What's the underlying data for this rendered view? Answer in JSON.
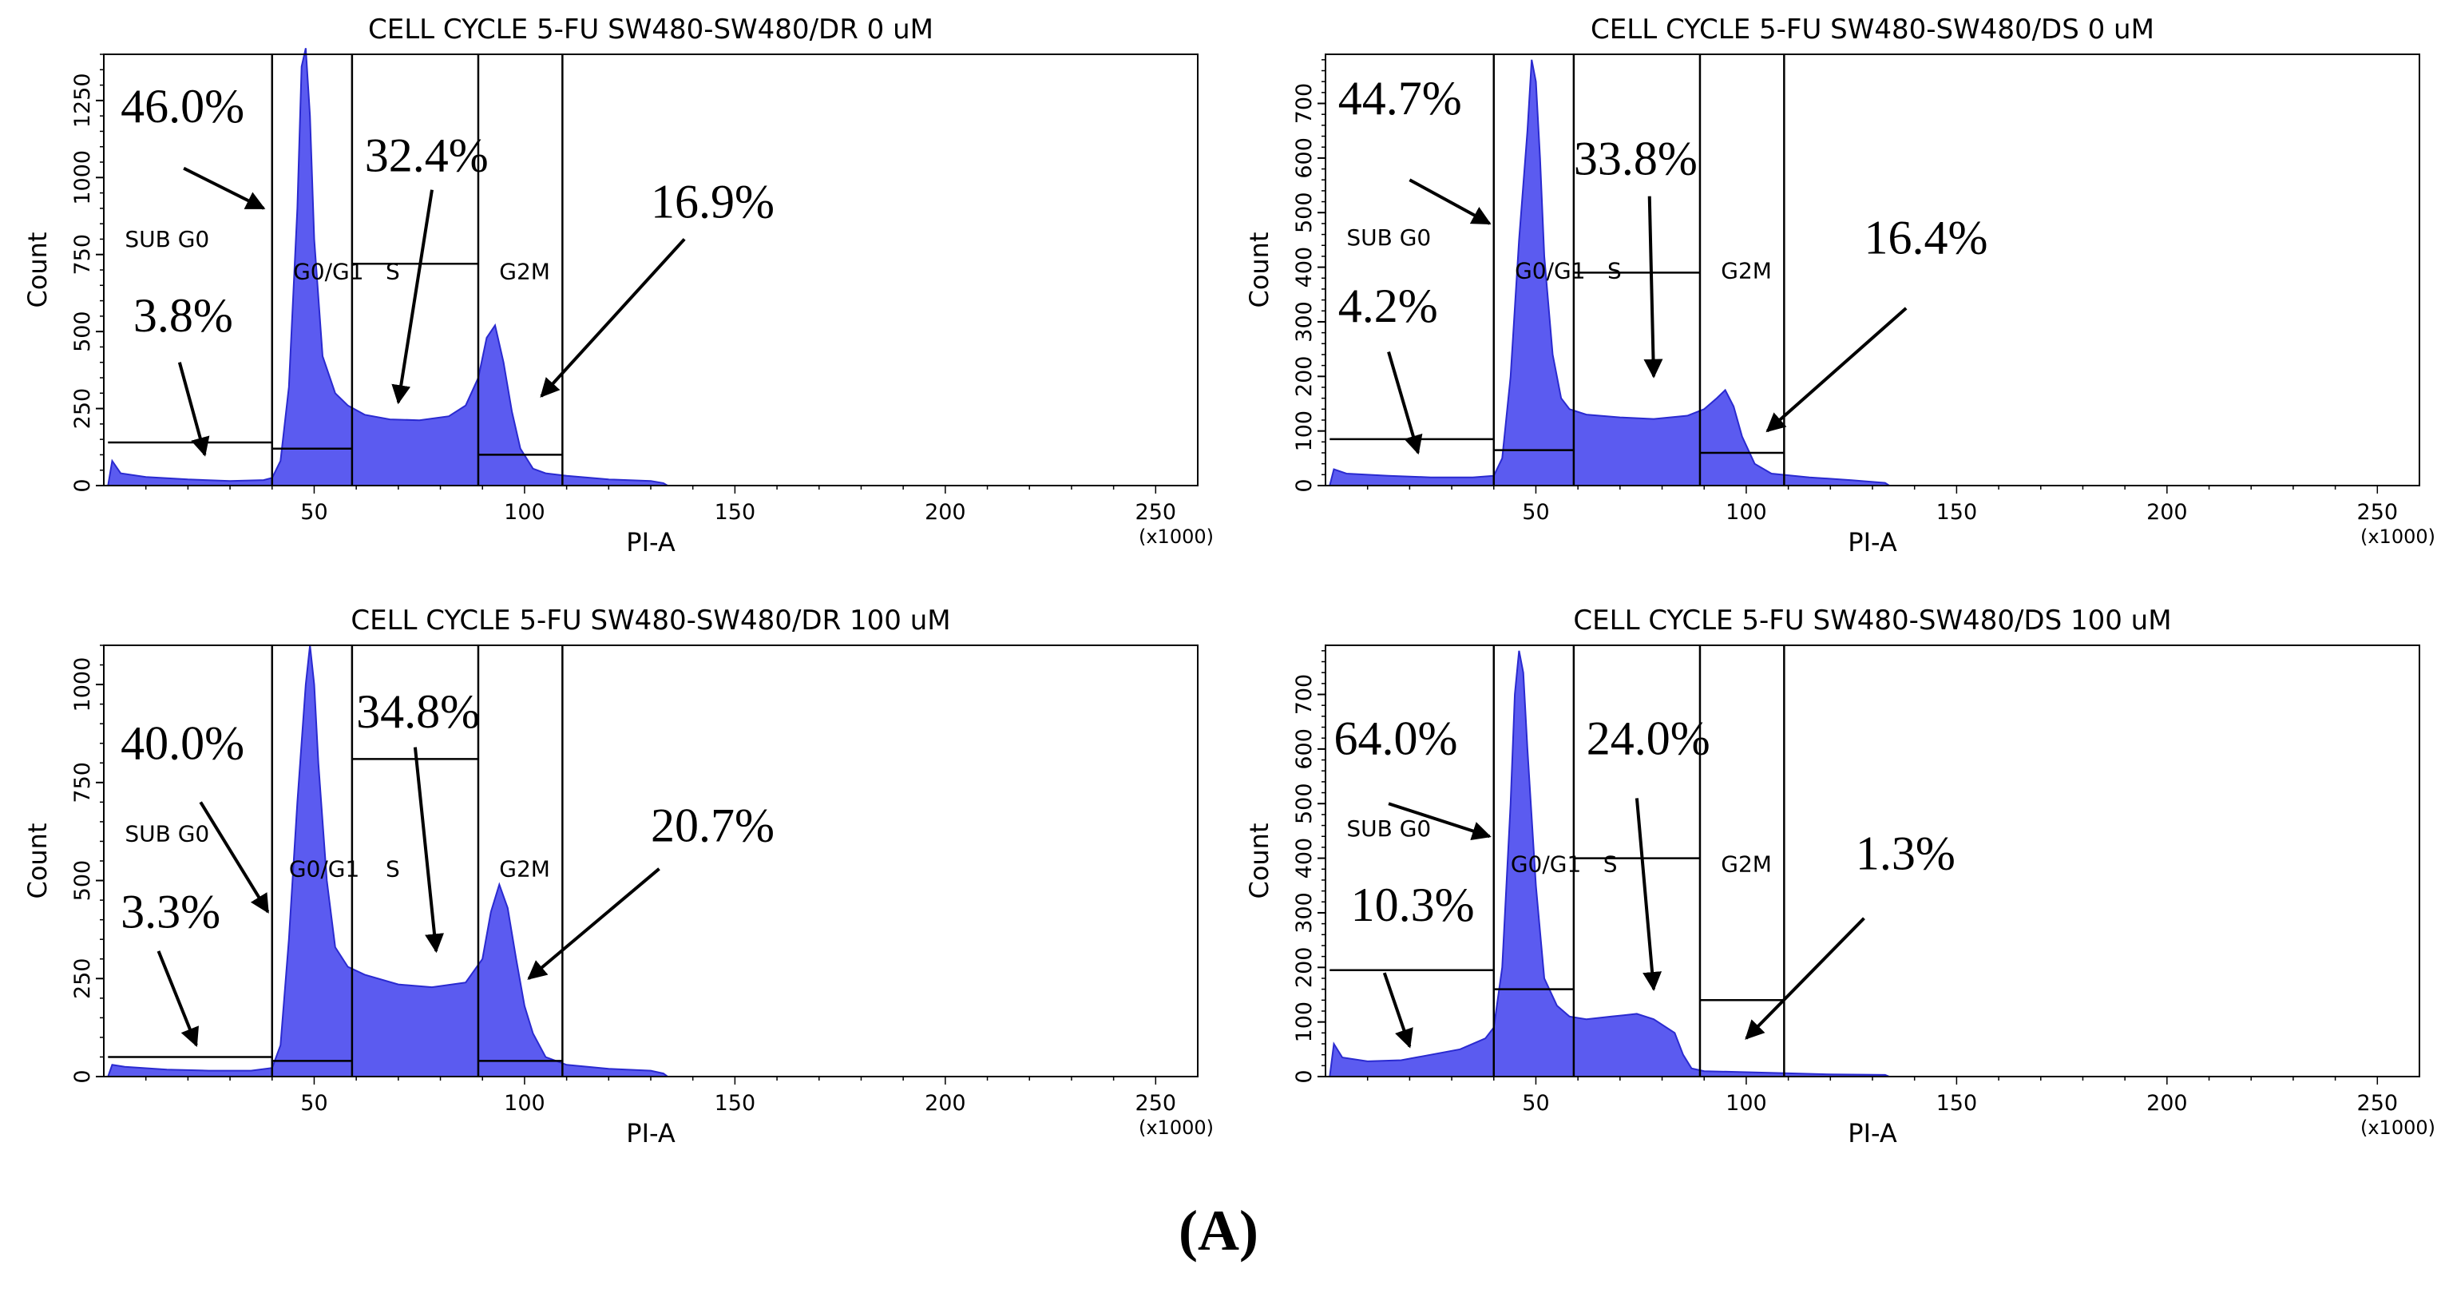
{
  "figure_label": "(A)",
  "colors": {
    "fill": "#5b5bf0",
    "edge": "#2a2ad0",
    "axis": "#000000",
    "arrow": "#000000"
  },
  "chart_data": [
    {
      "type": "area",
      "title": "CELL CYCLE 5-FU SW480-SW480/DR 0 uM",
      "xlabel": "PI-A",
      "ylabel": "Count",
      "x_unit": "(x1000)",
      "xlim": [
        0,
        260
      ],
      "ylim": [
        0,
        1400
      ],
      "xticks": [
        50,
        100,
        150,
        200,
        250
      ],
      "yticks": [
        0,
        250,
        500,
        750,
        1000,
        1250
      ],
      "gate_lines_x": [
        40,
        59,
        89,
        109
      ],
      "gates": [
        {
          "name": "SUB G0",
          "x_range": [
            1,
            40
          ],
          "level": 140
        },
        {
          "name": "G0/G1",
          "x_range": [
            40,
            59
          ],
          "level": 120
        },
        {
          "name": "S",
          "x_range": [
            59,
            89
          ],
          "level": 720
        },
        {
          "name": "G2M",
          "x_range": [
            89,
            109
          ],
          "level": 100
        }
      ],
      "gate_labels": [
        {
          "text": "SUB G0",
          "x": 5,
          "y": 775
        },
        {
          "text": "G0/G1",
          "x": 45,
          "y": 670
        },
        {
          "text": "S",
          "x": 67,
          "y": 670
        },
        {
          "text": "G2M",
          "x": 94,
          "y": 670
        }
      ],
      "histogram": [
        [
          1,
          0
        ],
        [
          2,
          80
        ],
        [
          4,
          40
        ],
        [
          10,
          28
        ],
        [
          20,
          20
        ],
        [
          30,
          15
        ],
        [
          38,
          18
        ],
        [
          40,
          25
        ],
        [
          42,
          80
        ],
        [
          44,
          320
        ],
        [
          46,
          900
        ],
        [
          47,
          1360
        ],
        [
          48,
          1420
        ],
        [
          49,
          1200
        ],
        [
          50,
          800
        ],
        [
          52,
          420
        ],
        [
          55,
          300
        ],
        [
          58,
          260
        ],
        [
          62,
          230
        ],
        [
          68,
          215
        ],
        [
          75,
          212
        ],
        [
          82,
          225
        ],
        [
          86,
          260
        ],
        [
          89,
          350
        ],
        [
          91,
          480
        ],
        [
          93,
          520
        ],
        [
          95,
          400
        ],
        [
          97,
          240
        ],
        [
          99,
          120
        ],
        [
          102,
          55
        ],
        [
          105,
          40
        ],
        [
          110,
          32
        ],
        [
          120,
          20
        ],
        [
          130,
          15
        ],
        [
          133,
          8
        ],
        [
          134,
          0
        ]
      ],
      "annotations": [
        {
          "text": "46.0%",
          "x": 4,
          "y": 1180,
          "arrow_from": [
            19,
            1030
          ],
          "arrow_to": [
            38,
            900
          ]
        },
        {
          "text": "32.4%",
          "x": 62,
          "y": 1020,
          "arrow_from": [
            78,
            960
          ],
          "arrow_to": [
            70,
            270
          ]
        },
        {
          "text": "16.9%",
          "x": 130,
          "y": 870,
          "arrow_from": [
            138,
            800
          ],
          "arrow_to": [
            104,
            290
          ]
        },
        {
          "text": "3.8%",
          "x": 7,
          "y": 500,
          "arrow_from": [
            18,
            400
          ],
          "arrow_to": [
            24,
            100
          ]
        }
      ]
    },
    {
      "type": "area",
      "title": "CELL CYCLE 5-FU SW480-SW480/DS 0 uM",
      "xlabel": "PI-A",
      "ylabel": "Count",
      "x_unit": "(x1000)",
      "xlim": [
        0,
        260
      ],
      "ylim": [
        0,
        790
      ],
      "xticks": [
        50,
        100,
        150,
        200,
        250
      ],
      "yticks": [
        0,
        100,
        200,
        300,
        400,
        500,
        600,
        700
      ],
      "gate_lines_x": [
        40,
        59,
        89,
        109
      ],
      "gates": [
        {
          "name": "SUB G0",
          "x_range": [
            1,
            40
          ],
          "level": 85
        },
        {
          "name": "G0/G1",
          "x_range": [
            40,
            59
          ],
          "level": 65
        },
        {
          "name": "S",
          "x_range": [
            59,
            89
          ],
          "level": 390
        },
        {
          "name": "G2M",
          "x_range": [
            89,
            109
          ],
          "level": 60
        }
      ],
      "gate_labels": [
        {
          "text": "SUB G0",
          "x": 5,
          "y": 440
        },
        {
          "text": "G0/G1",
          "x": 45,
          "y": 380
        },
        {
          "text": "S",
          "x": 67,
          "y": 380
        },
        {
          "text": "G2M",
          "x": 94,
          "y": 380
        }
      ],
      "histogram": [
        [
          1,
          0
        ],
        [
          2,
          30
        ],
        [
          5,
          22
        ],
        [
          15,
          18
        ],
        [
          25,
          15
        ],
        [
          35,
          15
        ],
        [
          40,
          18
        ],
        [
          42,
          50
        ],
        [
          44,
          200
        ],
        [
          46,
          450
        ],
        [
          48,
          650
        ],
        [
          49,
          780
        ],
        [
          50,
          740
        ],
        [
          51,
          600
        ],
        [
          52,
          420
        ],
        [
          54,
          240
        ],
        [
          56,
          160
        ],
        [
          58,
          140
        ],
        [
          62,
          130
        ],
        [
          70,
          125
        ],
        [
          78,
          122
        ],
        [
          86,
          128
        ],
        [
          90,
          140
        ],
        [
          93,
          160
        ],
        [
          95,
          175
        ],
        [
          97,
          145
        ],
        [
          99,
          90
        ],
        [
          102,
          40
        ],
        [
          106,
          22
        ],
        [
          115,
          15
        ],
        [
          125,
          10
        ],
        [
          133,
          5
        ],
        [
          134,
          0
        ]
      ],
      "annotations": [
        {
          "text": "44.7%",
          "x": 3,
          "y": 680,
          "arrow_from": [
            20,
            560
          ],
          "arrow_to": [
            39,
            480
          ]
        },
        {
          "text": "33.8%",
          "x": 59,
          "y": 570,
          "arrow_from": [
            77,
            530
          ],
          "arrow_to": [
            78,
            200
          ]
        },
        {
          "text": "16.4%",
          "x": 128,
          "y": 425,
          "arrow_from": [
            138,
            325
          ],
          "arrow_to": [
            105,
            100
          ]
        },
        {
          "text": "4.2%",
          "x": 3,
          "y": 300,
          "arrow_from": [
            15,
            245
          ],
          "arrow_to": [
            22,
            60
          ]
        }
      ]
    },
    {
      "type": "area",
      "title": "CELL CYCLE 5-FU SW480-SW480/DR 100 uM",
      "xlabel": "PI-A",
      "ylabel": "Count",
      "x_unit": "(x1000)",
      "xlim": [
        0,
        260
      ],
      "ylim": [
        0,
        1100
      ],
      "xticks": [
        50,
        100,
        150,
        200,
        250
      ],
      "yticks": [
        0,
        250,
        500,
        750,
        1000
      ],
      "gate_lines_x": [
        40,
        59,
        89,
        109
      ],
      "gates": [
        {
          "name": "SUB G0",
          "x_range": [
            1,
            40
          ],
          "level": 50
        },
        {
          "name": "G0/G1",
          "x_range": [
            40,
            59
          ],
          "level": 40
        },
        {
          "name": "S",
          "x_range": [
            59,
            89
          ],
          "level": 810
        },
        {
          "name": "G2M",
          "x_range": [
            89,
            109
          ],
          "level": 40
        }
      ],
      "gate_labels": [
        {
          "text": "SUB G0",
          "x": 5,
          "y": 600
        },
        {
          "text": "G0/G1",
          "x": 44,
          "y": 510
        },
        {
          "text": "S",
          "x": 67,
          "y": 510
        },
        {
          "text": "G2M",
          "x": 94,
          "y": 510
        }
      ],
      "histogram": [
        [
          1,
          0
        ],
        [
          2,
          30
        ],
        [
          5,
          25
        ],
        [
          15,
          18
        ],
        [
          25,
          15
        ],
        [
          35,
          15
        ],
        [
          40,
          22
        ],
        [
          42,
          80
        ],
        [
          44,
          350
        ],
        [
          46,
          700
        ],
        [
          48,
          1000
        ],
        [
          49,
          1100
        ],
        [
          50,
          1000
        ],
        [
          51,
          800
        ],
        [
          53,
          500
        ],
        [
          55,
          330
        ],
        [
          58,
          280
        ],
        [
          62,
          260
        ],
        [
          70,
          235
        ],
        [
          78,
          228
        ],
        [
          86,
          240
        ],
        [
          90,
          300
        ],
        [
          92,
          420
        ],
        [
          94,
          490
        ],
        [
          96,
          430
        ],
        [
          98,
          300
        ],
        [
          100,
          180
        ],
        [
          102,
          110
        ],
        [
          105,
          50
        ],
        [
          110,
          30
        ],
        [
          120,
          20
        ],
        [
          130,
          15
        ],
        [
          133,
          8
        ],
        [
          134,
          0
        ]
      ],
      "annotations": [
        {
          "text": "40.0%",
          "x": 4,
          "y": 810,
          "arrow_from": [
            23,
            700
          ],
          "arrow_to": [
            39,
            420
          ]
        },
        {
          "text": "34.8%",
          "x": 60,
          "y": 890,
          "arrow_from": [
            74,
            840
          ],
          "arrow_to": [
            79,
            320
          ]
        },
        {
          "text": "20.7%",
          "x": 130,
          "y": 600,
          "arrow_from": [
            132,
            530
          ],
          "arrow_to": [
            101,
            250
          ]
        },
        {
          "text": "3.3%",
          "x": 4,
          "y": 380,
          "arrow_from": [
            13,
            320
          ],
          "arrow_to": [
            22,
            80
          ]
        }
      ]
    },
    {
      "type": "area",
      "title": "CELL CYCLE 5-FU SW480-SW480/DS 100 uM",
      "xlabel": "PI-A",
      "ylabel": "Count",
      "x_unit": "(x1000)",
      "xlim": [
        0,
        260
      ],
      "ylim": [
        0,
        790
      ],
      "xticks": [
        50,
        100,
        150,
        200,
        250
      ],
      "yticks": [
        0,
        100,
        200,
        300,
        400,
        500,
        600,
        700
      ],
      "gate_lines_x": [
        40,
        59,
        89,
        109
      ],
      "gates": [
        {
          "name": "SUB G0",
          "x_range": [
            1,
            40
          ],
          "level": 195
        },
        {
          "name": "G0/G1",
          "x_range": [
            40,
            59
          ],
          "level": 160
        },
        {
          "name": "S",
          "x_range": [
            59,
            89
          ],
          "level": 400
        },
        {
          "name": "G2M",
          "x_range": [
            89,
            109
          ],
          "level": 140
        }
      ],
      "gate_labels": [
        {
          "text": "SUB G0",
          "x": 5,
          "y": 440
        },
        {
          "text": "G0/G1",
          "x": 44,
          "y": 375
        },
        {
          "text": "S",
          "x": 66,
          "y": 375
        },
        {
          "text": "G2M",
          "x": 94,
          "y": 375
        }
      ],
      "histogram": [
        [
          1,
          0
        ],
        [
          2,
          60
        ],
        [
          4,
          35
        ],
        [
          10,
          28
        ],
        [
          18,
          30
        ],
        [
          25,
          40
        ],
        [
          32,
          50
        ],
        [
          38,
          70
        ],
        [
          40,
          90
        ],
        [
          42,
          200
        ],
        [
          44,
          500
        ],
        [
          45,
          700
        ],
        [
          46,
          780
        ],
        [
          47,
          740
        ],
        [
          48,
          600
        ],
        [
          50,
          350
        ],
        [
          52,
          180
        ],
        [
          55,
          130
        ],
        [
          58,
          110
        ],
        [
          62,
          105
        ],
        [
          68,
          110
        ],
        [
          74,
          115
        ],
        [
          78,
          105
        ],
        [
          83,
          80
        ],
        [
          85,
          40
        ],
        [
          87,
          15
        ],
        [
          90,
          10
        ],
        [
          100,
          8
        ],
        [
          110,
          6
        ],
        [
          120,
          4
        ],
        [
          133,
          3
        ],
        [
          134,
          0
        ]
      ],
      "annotations": [
        {
          "text": "64.0%",
          "x": 2,
          "y": 590,
          "arrow_from": [
            15,
            500
          ],
          "arrow_to": [
            39,
            440
          ]
        },
        {
          "text": "24.0%",
          "x": 62,
          "y": 590,
          "arrow_from": [
            74,
            510
          ],
          "arrow_to": [
            78,
            160
          ]
        },
        {
          "text": "10.3%",
          "x": 6,
          "y": 285,
          "arrow_from": [
            14,
            190
          ],
          "arrow_to": [
            20,
            55
          ]
        },
        {
          "text": "1.3%",
          "x": 126,
          "y": 380,
          "arrow_from": [
            128,
            290
          ],
          "arrow_to": [
            100,
            70
          ]
        }
      ]
    }
  ]
}
